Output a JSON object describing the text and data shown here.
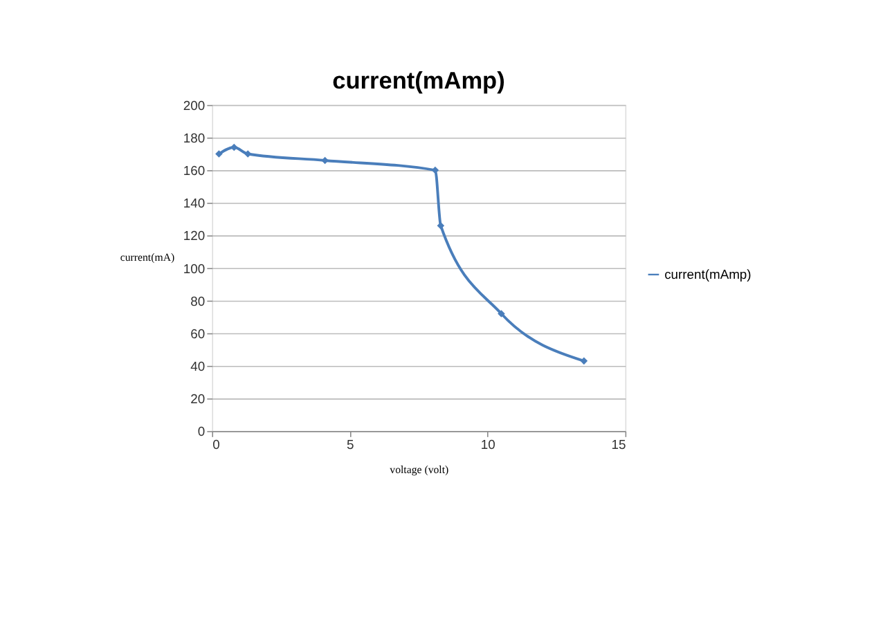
{
  "chart_data": {
    "type": "line",
    "title": "current(mAmp)",
    "xlabel": "voltage (volt)",
    "ylabel": "current(mA)",
    "series": [
      {
        "name": "current(mAmp)",
        "color": "#4a7ebb",
        "x": [
          0.25,
          0.8,
          1.3,
          4.1,
          8.1,
          8.3,
          10.5,
          13.5
        ],
        "values": [
          170,
          174,
          170,
          166,
          160,
          126,
          72,
          43
        ]
      }
    ],
    "xlim": [
      0,
      15
    ],
    "xticks": [
      0,
      5,
      10,
      15
    ],
    "ylim": [
      0,
      200
    ],
    "yticks": [
      0,
      20,
      40,
      60,
      80,
      100,
      120,
      140,
      160,
      180,
      200
    ],
    "grid": "y",
    "legend": "right",
    "marker": "diamond",
    "line_style": "solid"
  }
}
